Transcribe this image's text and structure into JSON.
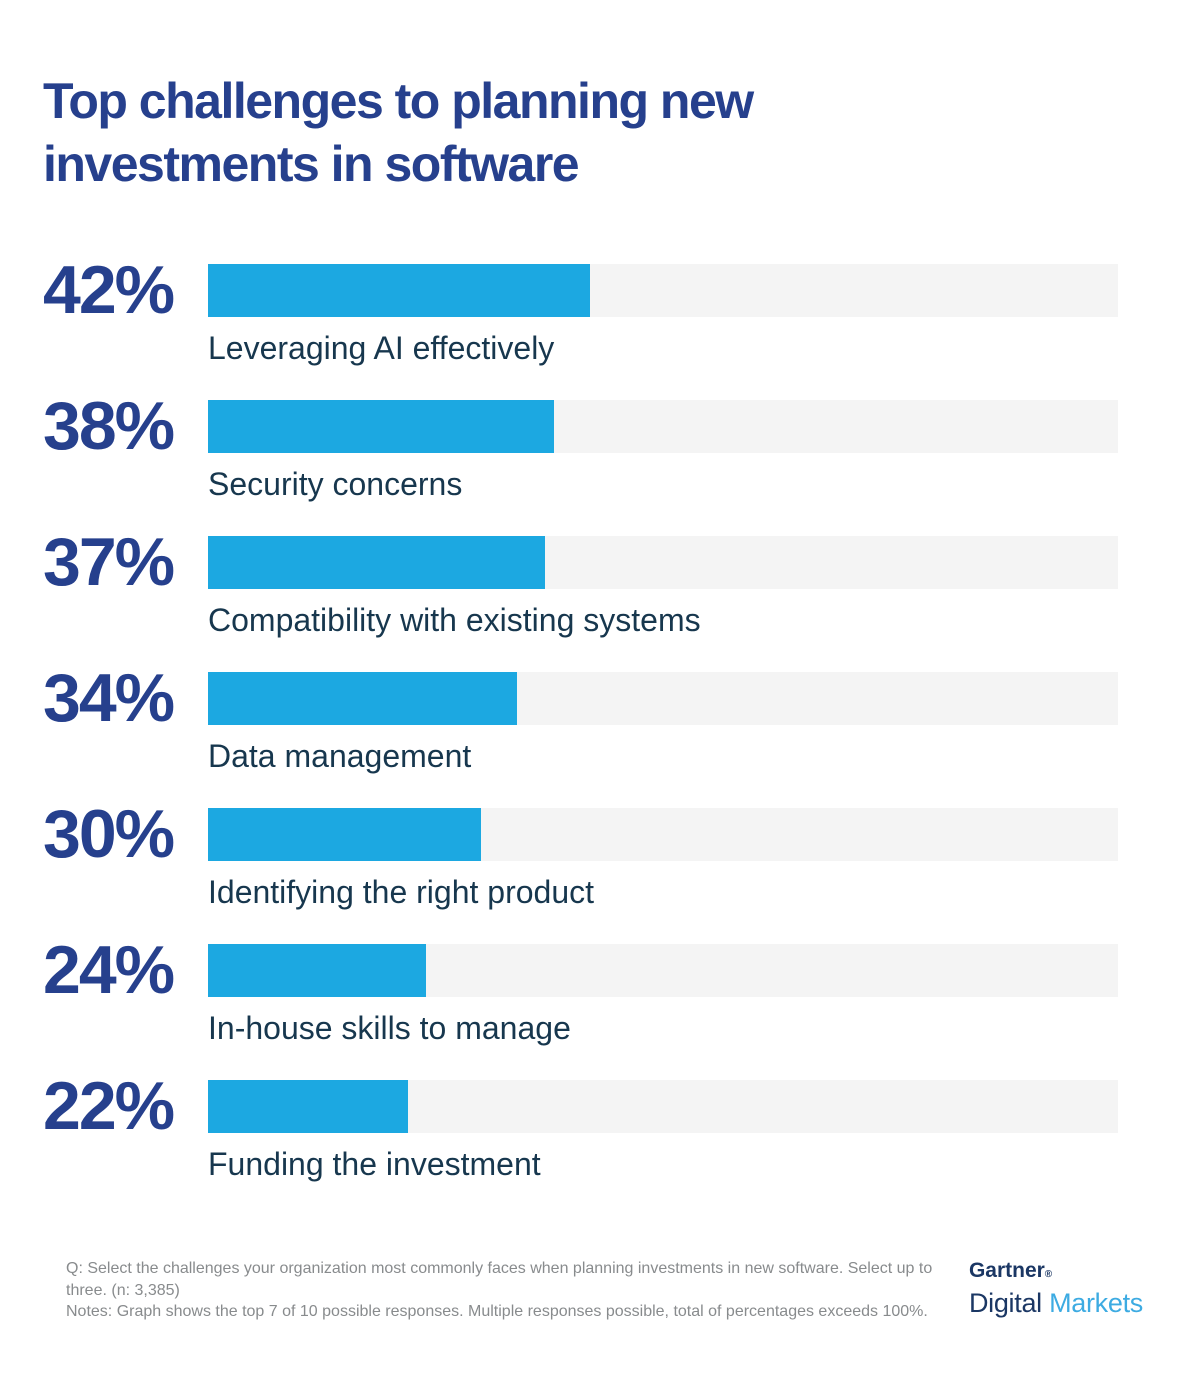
{
  "header": {
    "title_line1": "Top challenges to planning new",
    "title_line2": "investments in software"
  },
  "chart_data": {
    "type": "bar",
    "orientation": "horizontal",
    "title": "Top challenges to planning new investments in software",
    "categories": [
      "Leveraging AI effectively",
      "Security concerns",
      "Compatibility with existing systems",
      "Data management",
      "Identifying the right product",
      "In-house skills to manage",
      "Funding the investment"
    ],
    "values": [
      42,
      38,
      37,
      34,
      30,
      24,
      22
    ],
    "value_suffix": "%",
    "xlim": [
      0,
      100
    ],
    "grid": false,
    "legend": false,
    "bar_color": "#1CA8E1",
    "track_color": "#F4F4F4"
  },
  "footer": {
    "question": "Q: Select the challenges your organization most commonly faces when planning investments in new software. Select up to three. (n: 3,385)",
    "notes": "Notes: Graph shows the top 7 of 10 possible responses. Multiple responses possible, total of percentages exceeds 100%."
  },
  "logo": {
    "brand": "Gartner",
    "registered_mark": "®",
    "sub_brand_primary": "Digital",
    "sub_brand_secondary": "Markets"
  },
  "colors": {
    "navy": "#26408D",
    "label_dark": "#17374E",
    "bar_blue": "#1CA8E1",
    "track_gray": "#F4F4F4",
    "footer_gray": "#888B8D",
    "logo_navy": "#1B3764",
    "logo_blue": "#3DABE2",
    "page_bg": "#FFFFFF"
  }
}
